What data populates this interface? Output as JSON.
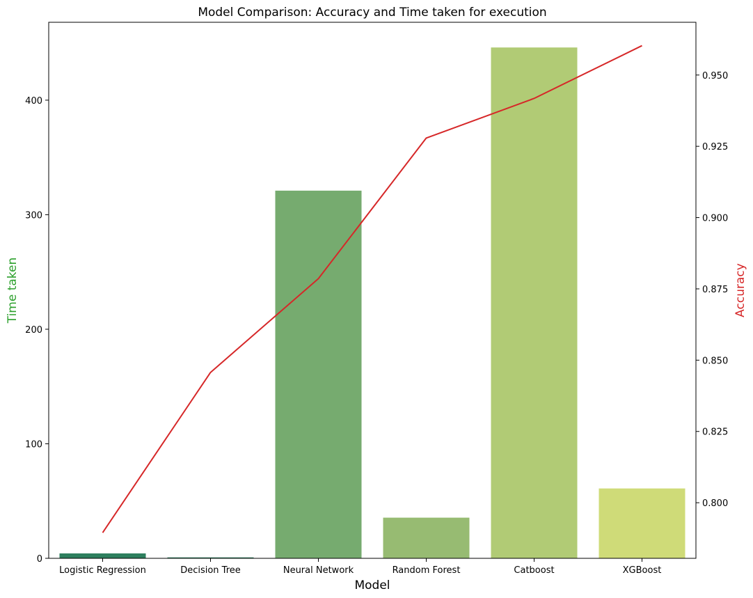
{
  "chart_data": {
    "type": "bar",
    "title": "Model Comparison: Accuracy and Time taken for execution",
    "xlabel": "Model",
    "ylabel": "Time taken",
    "y2label": "Accuracy",
    "categories": [
      "Logistic Regression",
      "Decision Tree",
      "Neural Network",
      "Random Forest",
      "Catboost",
      "XGBoost"
    ],
    "series": [
      {
        "axis": "left",
        "chart": "bar",
        "values": [
          4.3,
          0.8,
          321,
          35.5,
          446,
          61
        ],
        "colors": [
          "#2e7f5e",
          "#2e7f5e",
          "#76ab6f",
          "#97bb72",
          "#b1cb75",
          "#cfdb78"
        ]
      },
      {
        "axis": "right",
        "chart": "line",
        "values": [
          0.7895,
          0.8457,
          0.8786,
          0.9279,
          0.9418,
          0.9603
        ],
        "color": "#d62728"
      }
    ],
    "ylim": [
      0,
      468
    ],
    "y2lim": [
      0.7805,
      0.9685
    ],
    "yticks": [
      0,
      100,
      200,
      300,
      400
    ],
    "y2ticks": [
      "0.800",
      "0.825",
      "0.850",
      "0.875",
      "0.900",
      "0.925",
      "0.950"
    ],
    "ylabel_color": "#2ca02c",
    "y2label_color": "#d62728",
    "grid": false
  }
}
